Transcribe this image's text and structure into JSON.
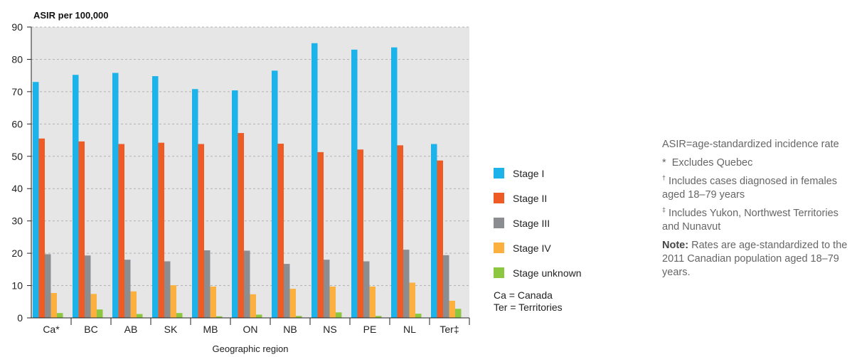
{
  "chart_data": {
    "type": "bar",
    "ylabel": "ASIR per 100,000",
    "xlabel": "Geographic region",
    "ylim": [
      0,
      90
    ],
    "yticks": [
      0,
      10,
      20,
      30,
      40,
      50,
      60,
      70,
      80,
      90
    ],
    "grid": true,
    "legend_placement": "right",
    "categories": [
      "Ca*",
      "BC",
      "AB",
      "SK",
      "MB",
      "ON",
      "NB",
      "NS",
      "PE",
      "NL",
      "Ter‡"
    ],
    "series": [
      {
        "name": "Stage I",
        "color": "#1bb3ea",
        "values": [
          73,
          75.2,
          75.8,
          74.8,
          70.8,
          70.4,
          76.5,
          85,
          83,
          83.7,
          53.8
        ]
      },
      {
        "name": "Stage II",
        "color": "#ef5b25",
        "values": [
          55.5,
          54.6,
          53.8,
          54.2,
          53.8,
          57.2,
          53.9,
          51.3,
          52.1,
          53.4,
          48.7
        ]
      },
      {
        "name": "Stage III",
        "color": "#8c8d91",
        "values": [
          19.7,
          19.3,
          18,
          17.5,
          20.9,
          20.8,
          16.7,
          18,
          17.5,
          21.1,
          19.4
        ]
      },
      {
        "name": "Stage IV",
        "color": "#fbb040",
        "values": [
          7.7,
          7.4,
          8.2,
          10.1,
          9.7,
          7.3,
          9,
          9.7,
          9.7,
          10.9,
          5.3
        ]
      },
      {
        "name": "Stage unknown",
        "color": "#8dc63f",
        "values": [
          1.5,
          2.6,
          1.2,
          1.5,
          0.5,
          1,
          0.6,
          1.7,
          0.6,
          1.3,
          2.8
        ]
      }
    ]
  },
  "abbreviations": [
    "Ca = Canada",
    "Ter = Territories"
  ],
  "notes": {
    "asir": "ASIR=age-standardized incidence rate",
    "excludes_marker": "*",
    "excludes": "Excludes Quebec",
    "dagger_marker": "†",
    "dagger": "Includes cases diagnosed in females aged 18–79 years",
    "ddagger_marker": "‡",
    "ddagger": "Includes Yukon, Northwest Territories and Nunavut",
    "note_label": "Note:",
    "note_text": "Rates are age-standardized to the 2011 Canadian population aged 18–79 years."
  }
}
